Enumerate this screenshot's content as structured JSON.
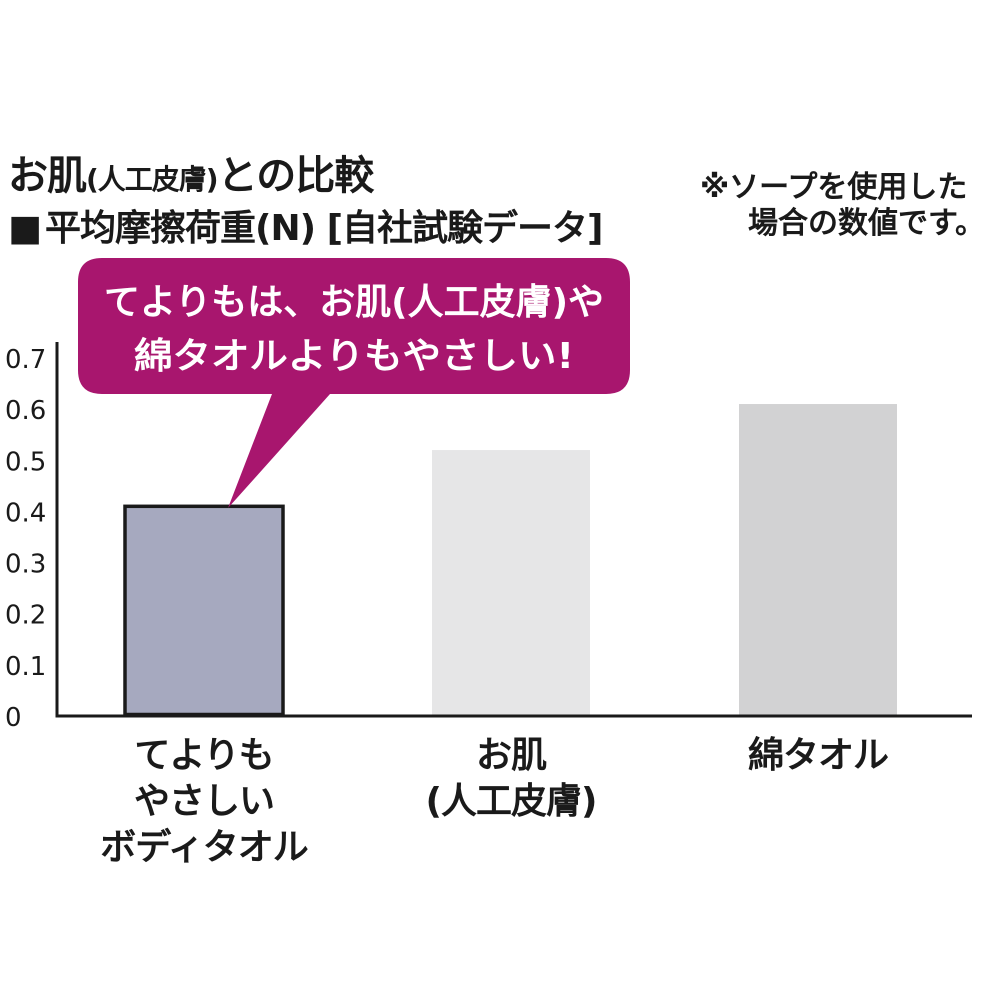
{
  "heading": {
    "title_main": "お肌",
    "title_paren": "(人工皮膚)",
    "title_tail": "との比較",
    "legend_square": "■",
    "subtitle": "平均摩擦荷重(N) [自社試験データ]"
  },
  "note": {
    "line1": "※ソープを使用した",
    "line2": "場合の数値です。"
  },
  "callout": {
    "line1": "てよりもは、お肌(人工皮膚)や",
    "line2": "綿タオルよりもやさしい!",
    "color": "#a8166e"
  },
  "chart_data": {
    "type": "bar",
    "categories": [
      "てよりも\nやさしい\nボディタオル",
      "お肌\n(人工皮膚)",
      "綿タオル"
    ],
    "values": [
      0.41,
      0.52,
      0.61
    ],
    "colors": [
      "#a6a9bf",
      "#e6e6e7",
      "#d2d2d3"
    ],
    "highlight_border": "#1a1a1a",
    "ylim": [
      0,
      0.7
    ],
    "yticks": [
      "0",
      "0.1",
      "0.2",
      "0.3",
      "0.4",
      "0.5",
      "0.6",
      "0.7"
    ],
    "grid": false
  }
}
